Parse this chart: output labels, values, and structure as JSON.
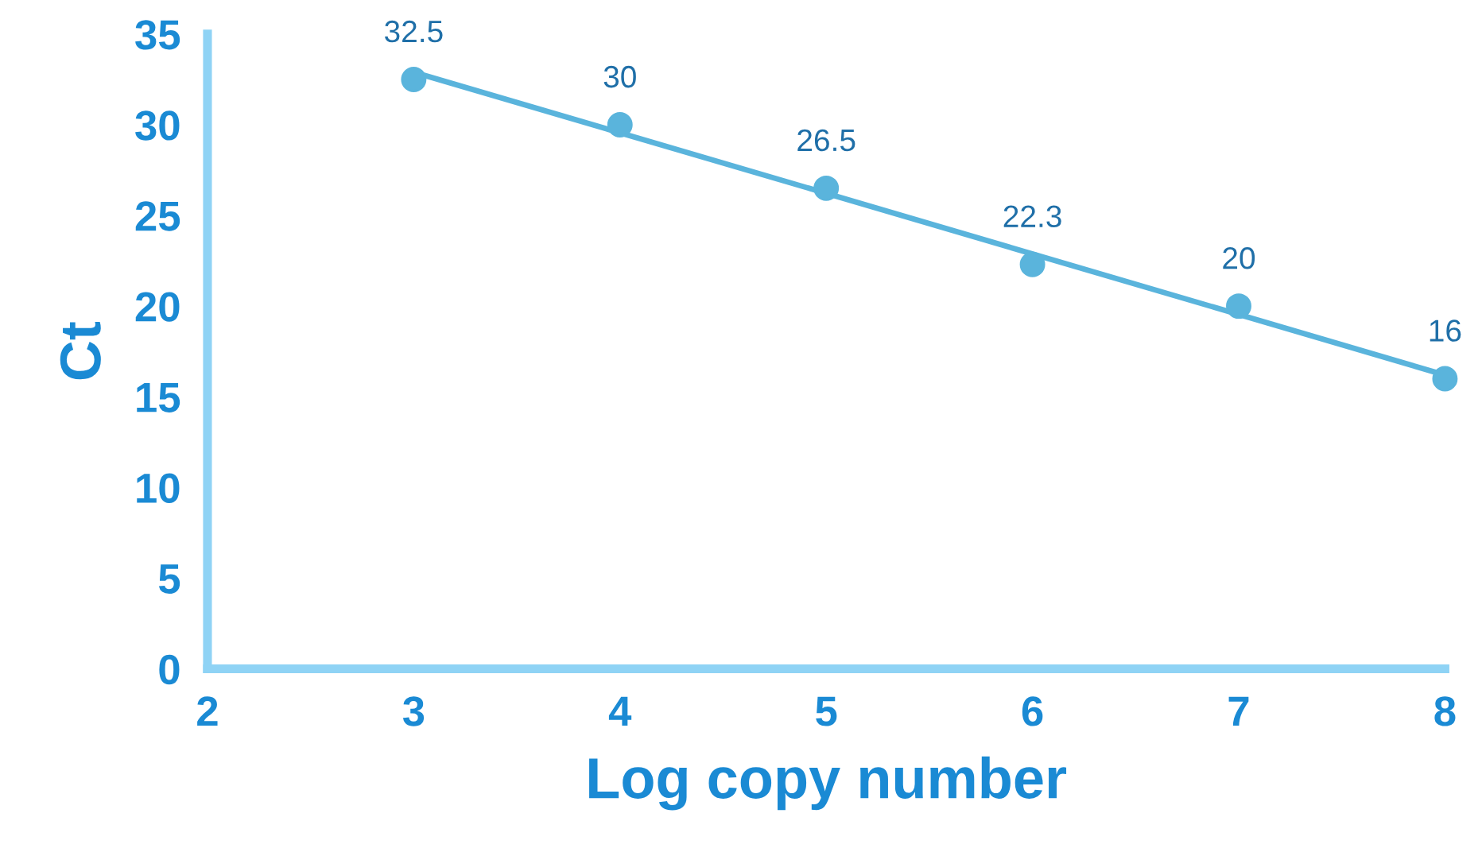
{
  "chart_data": {
    "type": "scatter",
    "xlabel": "Log copy number",
    "ylabel": "Ct",
    "xlim": [
      2,
      8
    ],
    "ylim": [
      0,
      35
    ],
    "xticks": [
      2,
      3,
      4,
      5,
      6,
      7,
      8
    ],
    "yticks": [
      0,
      5,
      10,
      15,
      20,
      25,
      30,
      35
    ],
    "grid": false,
    "legend": false,
    "marker": "circle",
    "series": [
      {
        "type": "line",
        "color": "#5ab4dc",
        "x": [
          3,
          8
        ],
        "values": [
          32.9,
          16.2
        ],
        "marker": "none",
        "line_style": "solid"
      },
      {
        "color": "#5ab4dc",
        "x": [
          3,
          4,
          5,
          6,
          7,
          8
        ],
        "values": [
          32.5,
          30,
          26.5,
          22.3,
          20,
          16
        ],
        "data_labels": true
      }
    ]
  }
}
